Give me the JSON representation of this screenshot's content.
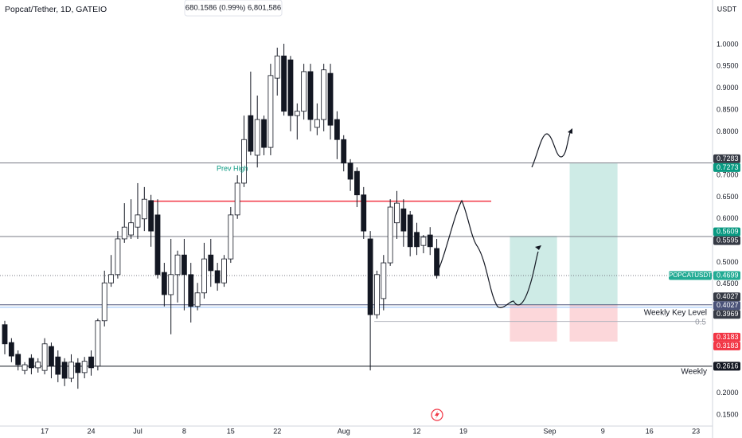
{
  "chart_data": {
    "type": "candlestick",
    "title": "Popcat/Tether, 1D, GATEIO",
    "legend_text": "680.1586 (0.99%) 6,801,586",
    "currency": "USDT",
    "symbol_label": "POPCATUSDT",
    "x": [
      0,
      1,
      2,
      3,
      4,
      5,
      6,
      7,
      8,
      9,
      10,
      11,
      12,
      13,
      14,
      15,
      16,
      17,
      18,
      19,
      20,
      21,
      22,
      23,
      24,
      25,
      26,
      27,
      28,
      29,
      30,
      31,
      32,
      33,
      34,
      35,
      36,
      37,
      38,
      39,
      40,
      41,
      42,
      43,
      44,
      45,
      46,
      47,
      48,
      49,
      50,
      51,
      52,
      53,
      54,
      55,
      56,
      57,
      58,
      59,
      60,
      61,
      62,
      63,
      64,
      65
    ],
    "open": [
      0.357,
      0.316,
      0.289,
      0.252,
      0.28,
      0.258,
      0.252,
      0.307,
      0.283,
      0.271,
      0.234,
      0.269,
      0.247,
      0.283,
      0.262,
      0.366,
      0.453,
      0.472,
      0.554,
      0.563,
      0.581,
      0.6,
      0.642,
      0.609,
      0.477,
      0.426,
      0.472,
      0.517,
      0.472,
      0.399,
      0.43,
      0.517,
      0.481,
      0.453,
      0.508,
      0.609,
      0.682,
      0.837,
      0.746,
      0.828,
      0.764,
      0.923,
      0.974,
      0.965,
      0.837,
      0.847,
      0.938,
      0.81,
      0.828,
      0.934,
      0.828,
      0.782,
      0.728,
      0.709,
      0.655,
      0.554,
      0.38,
      0.417,
      0.499,
      0.591,
      0.623,
      0.609,
      0.569,
      0.539,
      0.563,
      0.532
    ],
    "high": [
      0.366,
      0.326,
      0.298,
      0.271,
      0.289,
      0.28,
      0.326,
      0.316,
      0.298,
      0.28,
      0.289,
      0.28,
      0.283,
      0.298,
      0.371,
      0.481,
      0.517,
      0.572,
      0.636,
      0.645,
      0.682,
      0.673,
      0.655,
      0.645,
      0.499,
      0.554,
      0.527,
      0.554,
      0.499,
      0.453,
      0.545,
      0.554,
      0.499,
      0.517,
      0.627,
      0.7,
      0.837,
      0.938,
      0.883,
      0.837,
      0.956,
      0.993,
      1.002,
      0.974,
      0.865,
      0.956,
      0.956,
      0.865,
      0.956,
      0.956,
      0.847,
      0.792,
      0.737,
      0.718,
      0.673,
      0.572,
      0.481,
      0.517,
      0.645,
      0.664,
      0.645,
      0.618,
      0.591,
      0.563,
      0.581,
      0.554
    ],
    "low": [
      0.289,
      0.271,
      0.252,
      0.243,
      0.243,
      0.247,
      0.243,
      0.234,
      0.225,
      0.216,
      0.225,
      0.21,
      0.234,
      0.24,
      0.252,
      0.353,
      0.444,
      0.463,
      0.545,
      0.554,
      0.554,
      0.572,
      0.536,
      0.463,
      0.399,
      0.335,
      0.408,
      0.39,
      0.362,
      0.39,
      0.417,
      0.444,
      0.435,
      0.444,
      0.499,
      0.6,
      0.673,
      0.746,
      0.718,
      0.746,
      0.746,
      0.883,
      0.837,
      0.801,
      0.782,
      0.828,
      0.801,
      0.792,
      0.801,
      0.782,
      0.737,
      0.709,
      0.664,
      0.627,
      0.554,
      0.252,
      0.371,
      0.39,
      0.492,
      0.554,
      0.536,
      0.514,
      0.517,
      0.521,
      0.517,
      0.463
    ],
    "close": [
      0.313,
      0.285,
      0.265,
      0.265,
      0.258,
      0.271,
      0.313,
      0.262,
      0.243,
      0.234,
      0.271,
      0.247,
      0.273,
      0.258,
      0.366,
      0.453,
      0.472,
      0.554,
      0.581,
      0.591,
      0.609,
      0.645,
      0.572,
      0.472,
      0.426,
      0.472,
      0.517,
      0.472,
      0.399,
      0.43,
      0.508,
      0.481,
      0.453,
      0.508,
      0.609,
      0.682,
      0.782,
      0.755,
      0.828,
      0.764,
      0.929,
      0.974,
      0.847,
      0.837,
      0.847,
      0.938,
      0.828,
      0.828,
      0.942,
      0.815,
      0.782,
      0.728,
      0.691,
      0.655,
      0.572,
      0.38,
      0.472,
      0.499,
      0.627,
      0.636,
      0.572,
      0.536,
      0.536,
      0.558,
      0.536,
      0.4699
    ],
    "up_color": "#ffffff",
    "down_color": "#131722",
    "xlim": [
      -0.72,
      106.5
    ],
    "ylim": [
      0.1243,
      1.1024
    ],
    "xticks": [
      {
        "value": 6,
        "label": "17"
      },
      {
        "value": 13,
        "label": "24"
      },
      {
        "value": 20,
        "label": "Jul"
      },
      {
        "value": 27,
        "label": "8"
      },
      {
        "value": 34,
        "label": "15"
      },
      {
        "value": 41,
        "label": "22"
      },
      {
        "value": 51,
        "label": "Aug"
      },
      {
        "value": 62,
        "label": "12"
      },
      {
        "value": 69,
        "label": "19"
      },
      {
        "value": 82,
        "label": "Sep"
      },
      {
        "value": 90,
        "label": "9"
      },
      {
        "value": 97,
        "label": "16"
      },
      {
        "value": 104,
        "label": "23"
      }
    ],
    "yticks": [
      {
        "value": 1,
        "label": "1.0000"
      },
      {
        "value": 0.95,
        "label": "0.9500"
      },
      {
        "value": 0.9,
        "label": "0.9000"
      },
      {
        "value": 0.85,
        "label": "0.8500"
      },
      {
        "value": 0.8,
        "label": "0.8000"
      },
      {
        "value": 0.7,
        "label": "0.7000"
      },
      {
        "value": 0.65,
        "label": "0.6500"
      },
      {
        "value": 0.6,
        "label": "0.6000"
      },
      {
        "value": 0.5,
        "label": "0.5000"
      },
      {
        "value": 0.45,
        "label": "0.4500"
      },
      {
        "value": 0.2,
        "label": "0.2000"
      },
      {
        "value": 0.15,
        "label": "0.1500"
      }
    ],
    "lines": [
      {
        "value": 0.7283,
        "color": "#787b86"
      },
      {
        "value": 0.5595,
        "color": "#787b86"
      },
      {
        "value": 0.4027,
        "color": "#4a5278"
      },
      {
        "value": 0.3969,
        "color": "#90bff9"
      },
      {
        "value": 0.2616,
        "color": "#131722"
      }
    ],
    "resistance": {
      "value": 0.6406,
      "from": 22,
      "to": 73.2,
      "color": "#f23645"
    },
    "fib": {
      "value": 0.3645,
      "from": 55.6,
      "to": 105.3,
      "color": "#b2b5be"
    },
    "positions": [
      {
        "x": [
          76,
          83.1
        ],
        "target": 0.5609,
        "entry": 0.4027,
        "stop": 0.3183
      },
      {
        "x": [
          85,
          92.2
        ],
        "target": 0.7273,
        "entry": 0.4027,
        "stop": 0.3183
      }
    ],
    "price_labels": [
      {
        "value": 0.7283,
        "color": "#363a45"
      },
      {
        "value": 0.7273,
        "color": "#089981"
      },
      {
        "value": 0.5609,
        "color": "#089981"
      },
      {
        "value": 0.5595,
        "color": "#363a45"
      },
      {
        "value": 0.4699,
        "color": "#22ab94"
      },
      {
        "value": 0.4027,
        "color": "#363a45"
      },
      {
        "value": 0.4027,
        "color": "#4a5278"
      },
      {
        "value": 0.3969,
        "color": "#363a45"
      },
      {
        "value": 0.3183,
        "color": "#f23645"
      },
      {
        "value": 0.3183,
        "color": "#f23645"
      },
      {
        "value": 0.2616,
        "color": "#131722"
      }
    ],
    "prev_high_label": "Prev High",
    "key_level_label": "Weekly Key Level",
    "weekly_label": "Weekly",
    "fib_label": "0.5"
  }
}
